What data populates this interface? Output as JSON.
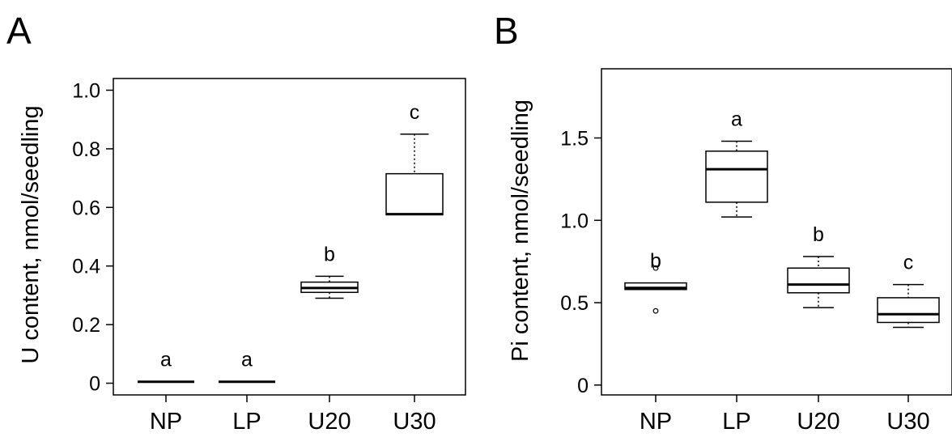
{
  "chart_data": [
    {
      "type": "boxplot",
      "panel_label": "A",
      "ylabel": "U content, nmol/seedling",
      "ylim": [
        -0.04,
        1.04
      ],
      "yticks": [
        {
          "value": 0,
          "label": "0"
        },
        {
          "value": 0.2,
          "label": "0.2"
        },
        {
          "value": 0.4,
          "label": "0.4"
        },
        {
          "value": 0.6,
          "label": "0.6"
        },
        {
          "value": 0.8,
          "label": "0.8"
        },
        {
          "value": 1.0,
          "label": "1.0"
        }
      ],
      "categories": [
        "NP",
        "LP",
        "U20",
        "U30"
      ],
      "boxes": [
        {
          "category": "NP",
          "min": 0.005,
          "q1": 0.005,
          "median": 0.005,
          "q3": 0.005,
          "max": 0.005,
          "outliers": [],
          "letter": "a"
        },
        {
          "category": "LP",
          "min": 0.005,
          "q1": 0.005,
          "median": 0.005,
          "q3": 0.005,
          "max": 0.005,
          "outliers": [],
          "letter": "a"
        },
        {
          "category": "U20",
          "min": 0.29,
          "q1": 0.31,
          "median": 0.325,
          "q3": 0.345,
          "max": 0.365,
          "outliers": [],
          "letter": "b"
        },
        {
          "category": "U30",
          "min": 0.575,
          "q1": 0.575,
          "median": 0.577,
          "q3": 0.715,
          "max": 0.85,
          "outliers": [],
          "letter": "c"
        }
      ]
    },
    {
      "type": "boxplot",
      "panel_label": "B",
      "ylabel": "Pi content, nmol/seedling",
      "ylim": [
        -0.06,
        1.92
      ],
      "yticks": [
        {
          "value": 0,
          "label": "0"
        },
        {
          "value": 0.5,
          "label": "0.5"
        },
        {
          "value": 1.0,
          "label": "1.0"
        },
        {
          "value": 1.5,
          "label": "1.5"
        }
      ],
      "categories": [
        "NP",
        "LP",
        "U20",
        "U30"
      ],
      "boxes": [
        {
          "category": "NP",
          "min": 0.58,
          "q1": 0.58,
          "median": 0.59,
          "q3": 0.62,
          "max": 0.62,
          "outliers": [
            0.71,
            0.45
          ],
          "letter": "b"
        },
        {
          "category": "LP",
          "min": 1.02,
          "q1": 1.11,
          "median": 1.31,
          "q3": 1.42,
          "max": 1.48,
          "outliers": [],
          "letter": "a"
        },
        {
          "category": "U20",
          "min": 0.47,
          "q1": 0.56,
          "median": 0.61,
          "q3": 0.71,
          "max": 0.78,
          "outliers": [],
          "letter": "b"
        },
        {
          "category": "U30",
          "min": 0.35,
          "q1": 0.38,
          "median": 0.43,
          "q3": 0.53,
          "max": 0.61,
          "outliers": [],
          "letter": "c"
        }
      ]
    }
  ]
}
